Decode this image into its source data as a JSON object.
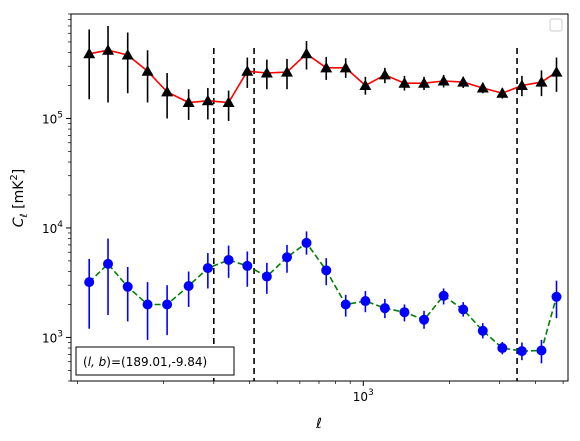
{
  "chart_data": {
    "type": "scatter",
    "title": "",
    "xlabel": "ℓ",
    "ylabel": "C_ℓ  [mK²]",
    "xscale": "log",
    "yscale": "log",
    "xlim": [
      95,
      5200
    ],
    "ylim": [
      400,
      900000
    ],
    "x_major_ticks": [
      {
        "value": 1000,
        "label_base": "10",
        "label_exp": "3"
      }
    ],
    "y_major_ticks": [
      {
        "value": 1000,
        "label_base": "10",
        "label_exp": "3"
      },
      {
        "value": 10000,
        "label_base": "10",
        "label_exp": "4"
      },
      {
        "value": 100000,
        "label_base": "10",
        "label_exp": "5"
      }
    ],
    "grid": false,
    "legend": {
      "placement": "top-right",
      "entries": []
    },
    "annotation": {
      "text": "(l, b)=(189.01,-9.84)",
      "italic_part": "(l, b)",
      "rest": "=(189.01,-9.84)",
      "placement": "bottom-left"
    },
    "vlines_x": [
      300,
      415,
      3450
    ],
    "series": [
      {
        "line_color": "#ff0000",
        "line_style": "solid",
        "marker": "triangle",
        "marker_color": "#000000",
        "errorbar_color": "#000000",
        "points": [
          {
            "x": 110,
            "y": 390000,
            "lo": 150000,
            "hi": 650000
          },
          {
            "x": 128,
            "y": 420000,
            "lo": 140000,
            "hi": 700000
          },
          {
            "x": 150,
            "y": 380000,
            "lo": 170000,
            "hi": 610000
          },
          {
            "x": 176,
            "y": 270000,
            "lo": 140000,
            "hi": 420000
          },
          {
            "x": 206,
            "y": 175000,
            "lo": 100000,
            "hi": 260000
          },
          {
            "x": 245,
            "y": 140000,
            "lo": 97000,
            "hi": 185000
          },
          {
            "x": 286,
            "y": 145000,
            "lo": 98000,
            "hi": 190000
          },
          {
            "x": 338,
            "y": 140000,
            "lo": 95000,
            "hi": 180000
          },
          {
            "x": 393,
            "y": 270000,
            "lo": 190000,
            "hi": 360000
          },
          {
            "x": 460,
            "y": 260000,
            "lo": 185000,
            "hi": 345000
          },
          {
            "x": 541,
            "y": 265000,
            "lo": 185000,
            "hi": 350000
          },
          {
            "x": 633,
            "y": 390000,
            "lo": 280000,
            "hi": 510000
          },
          {
            "x": 742,
            "y": 290000,
            "lo": 225000,
            "hi": 365000
          },
          {
            "x": 868,
            "y": 290000,
            "lo": 235000,
            "hi": 355000
          },
          {
            "x": 1017,
            "y": 200000,
            "lo": 165000,
            "hi": 240000
          },
          {
            "x": 1190,
            "y": 250000,
            "lo": 210000,
            "hi": 290000
          },
          {
            "x": 1393,
            "y": 210000,
            "lo": 180000,
            "hi": 245000
          },
          {
            "x": 1631,
            "y": 210000,
            "lo": 182000,
            "hi": 240000
          },
          {
            "x": 1910,
            "y": 220000,
            "lo": 192000,
            "hi": 250000
          },
          {
            "x": 2236,
            "y": 215000,
            "lo": 190000,
            "hi": 240000
          },
          {
            "x": 2618,
            "y": 190000,
            "lo": 170000,
            "hi": 212000
          },
          {
            "x": 3064,
            "y": 170000,
            "lo": 152000,
            "hi": 190000
          },
          {
            "x": 3588,
            "y": 200000,
            "lo": 160000,
            "hi": 245000
          },
          {
            "x": 4200,
            "y": 215000,
            "lo": 160000,
            "hi": 275000
          },
          {
            "x": 4740,
            "y": 265000,
            "lo": 175000,
            "hi": 360000
          }
        ]
      },
      {
        "line_color": "#008000",
        "line_style": "dashed",
        "marker": "circle",
        "marker_color": "#0000ff",
        "errorbar_color": "#0000ff",
        "points": [
          {
            "x": 110,
            "y": 3200,
            "lo": 1200,
            "hi": 5200
          },
          {
            "x": 128,
            "y": 4700,
            "lo": 1600,
            "hi": 8000
          },
          {
            "x": 150,
            "y": 2900,
            "lo": 1400,
            "hi": 4400
          },
          {
            "x": 176,
            "y": 2000,
            "lo": 950,
            "hi": 3200
          },
          {
            "x": 206,
            "y": 2000,
            "lo": 1050,
            "hi": 3000
          },
          {
            "x": 245,
            "y": 2950,
            "lo": 1900,
            "hi": 4000
          },
          {
            "x": 286,
            "y": 4300,
            "lo": 2800,
            "hi": 5900
          },
          {
            "x": 338,
            "y": 5100,
            "lo": 3500,
            "hi": 6900
          },
          {
            "x": 393,
            "y": 4500,
            "lo": 2900,
            "hi": 6100
          },
          {
            "x": 460,
            "y": 3600,
            "lo": 2500,
            "hi": 4800
          },
          {
            "x": 541,
            "y": 5400,
            "lo": 3900,
            "hi": 7000
          },
          {
            "x": 633,
            "y": 7300,
            "lo": 5700,
            "hi": 9300
          },
          {
            "x": 742,
            "y": 4100,
            "lo": 3000,
            "hi": 5300
          },
          {
            "x": 868,
            "y": 2000,
            "lo": 1550,
            "hi": 2450
          },
          {
            "x": 1017,
            "y": 2150,
            "lo": 1700,
            "hi": 2650
          },
          {
            "x": 1190,
            "y": 1850,
            "lo": 1500,
            "hi": 2250
          },
          {
            "x": 1393,
            "y": 1700,
            "lo": 1400,
            "hi": 2000
          },
          {
            "x": 1631,
            "y": 1450,
            "lo": 1200,
            "hi": 1750
          },
          {
            "x": 1910,
            "y": 2400,
            "lo": 2000,
            "hi": 2800
          },
          {
            "x": 2236,
            "y": 1800,
            "lo": 1550,
            "hi": 2100
          },
          {
            "x": 2618,
            "y": 1150,
            "lo": 980,
            "hi": 1350
          },
          {
            "x": 3064,
            "y": 800,
            "lo": 700,
            "hi": 910
          },
          {
            "x": 3588,
            "y": 750,
            "lo": 620,
            "hi": 900
          },
          {
            "x": 4200,
            "y": 760,
            "lo": 580,
            "hi": 950
          },
          {
            "x": 4740,
            "y": 2350,
            "lo": 1500,
            "hi": 3300
          }
        ]
      }
    ]
  }
}
